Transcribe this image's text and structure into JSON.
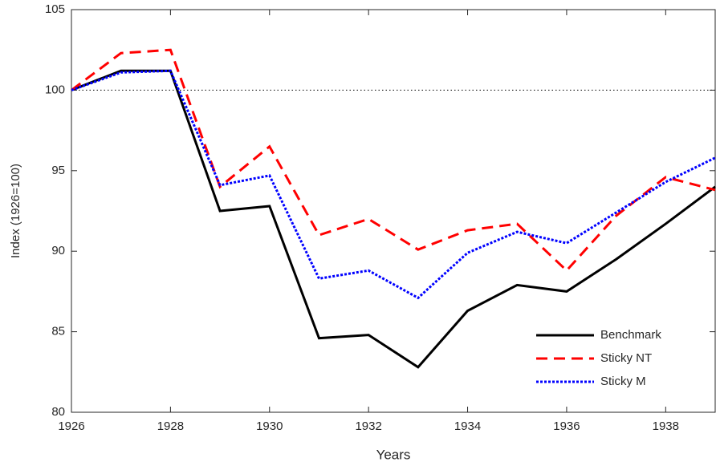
{
  "chart_data": {
    "type": "line",
    "x": [
      1926,
      1927,
      1928,
      1929,
      1930,
      1931,
      1932,
      1933,
      1934,
      1935,
      1936,
      1937,
      1938,
      1939
    ],
    "series": [
      {
        "name": "Benchmark",
        "color": "#000000",
        "dash": "solid",
        "values": [
          100,
          101.2,
          101.2,
          92.5,
          92.8,
          84.6,
          84.8,
          82.8,
          86.3,
          87.9,
          87.5,
          89.5,
          91.7,
          94.0
        ]
      },
      {
        "name": "Sticky NT",
        "color": "#ff0000",
        "dash": "dashed",
        "values": [
          100,
          102.3,
          102.5,
          94.0,
          96.5,
          91.0,
          92.0,
          90.1,
          91.3,
          91.7,
          88.8,
          92.2,
          94.6,
          93.8
        ]
      },
      {
        "name": "Sticky M",
        "color": "#0000ff",
        "dash": "dotted",
        "values": [
          100,
          101.1,
          101.2,
          94.1,
          94.7,
          88.3,
          88.8,
          87.1,
          89.9,
          91.2,
          90.5,
          92.4,
          94.3,
          95.8
        ]
      }
    ],
    "xlabel": "Years",
    "ylabel": "Index (1926=100)",
    "xlim": [
      1926,
      1939
    ],
    "xticks": [
      1926,
      1928,
      1930,
      1932,
      1934,
      1936,
      1938
    ],
    "ylim": [
      80,
      105
    ],
    "yticks": [
      80,
      85,
      90,
      95,
      100,
      105
    ],
    "hline": 100,
    "legend": "lower right"
  }
}
